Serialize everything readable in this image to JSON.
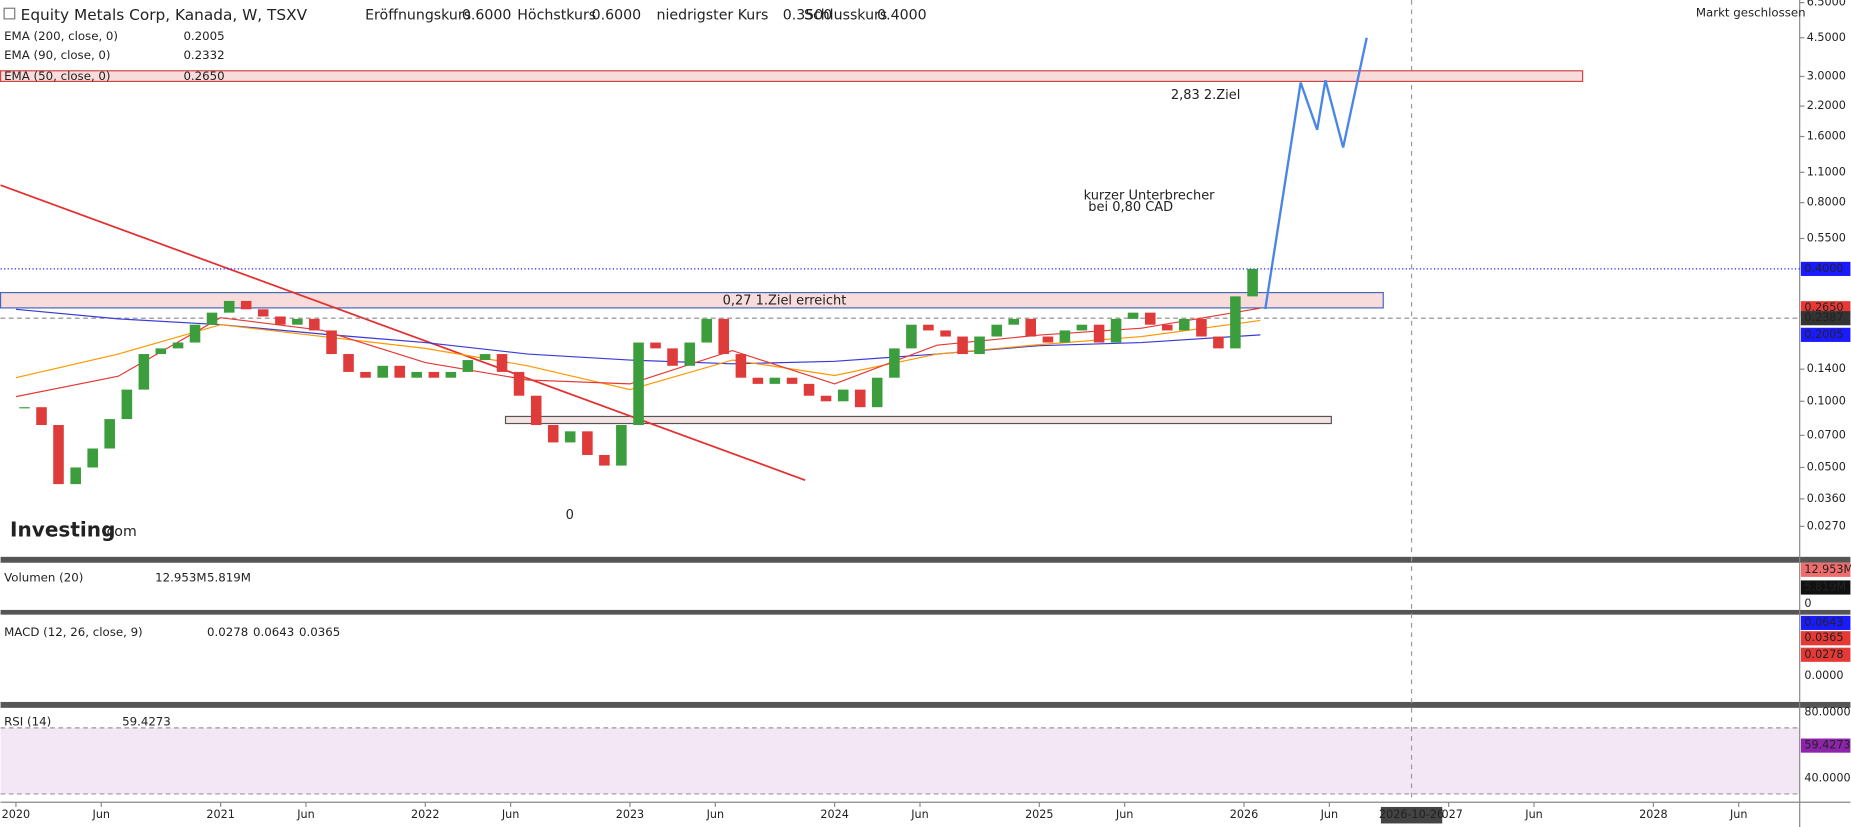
{
  "header": {
    "title": "Equity Metals Corp, Kanada, W, TSXV",
    "ohlc": [
      {
        "label": "Eröffnungskurs",
        "value": "0.6000"
      },
      {
        "label": "Höchstkurs",
        "value": "0.6000"
      },
      {
        "label": "niedrigster Kurs",
        "value": "0.3500"
      },
      {
        "label": "Schlusskurs",
        "value": "0.4000"
      }
    ],
    "market_status": "Markt geschlossen",
    "logo": "Investing",
    "logo_suffix": ".com"
  },
  "indicators": [
    {
      "label": "EMA (200, close, 0)",
      "value": "0.2005",
      "color": "#1a1aff"
    },
    {
      "label": "EMA (90, close, 0)",
      "value": "0.2332",
      "color": "#ff9800"
    },
    {
      "label": "EMA (50, close, 0)",
      "value": "0.2650",
      "color": "#e53935"
    }
  ],
  "chart_data": {
    "type": "candlestick",
    "log_scale": true,
    "xlim": [
      2019.925,
      2028.715
    ],
    "ylim": [
      0.0245,
      6.6
    ],
    "yticks": [
      {
        "value": 0.027,
        "label": "0.0270"
      },
      {
        "value": 0.036,
        "label": "0.0360"
      },
      {
        "value": 0.05,
        "label": "0.0500"
      },
      {
        "value": 0.07,
        "label": "0.0700"
      },
      {
        "value": 0.1,
        "label": "0.1000"
      },
      {
        "value": 0.14,
        "label": "0.1400"
      },
      {
        "value": 0.55,
        "label": "0.5500"
      },
      {
        "value": 0.8,
        "label": "0.8000"
      },
      {
        "value": 1.1,
        "label": "1.1000"
      },
      {
        "value": 1.6,
        "label": "1.6000"
      },
      {
        "value": 2.2,
        "label": "2.2000"
      },
      {
        "value": 3,
        "label": "3.0000"
      },
      {
        "value": 4.5,
        "label": "4.5000"
      },
      {
        "value": 6.5,
        "label": "6.5000"
      }
    ],
    "xticks": [
      {
        "value": 2020,
        "label": "2020"
      },
      {
        "value": 2020.417,
        "label": "Jun"
      },
      {
        "value": 2021,
        "label": "2021"
      },
      {
        "value": 2021.417,
        "label": "Jun"
      },
      {
        "value": 2022,
        "label": "2022"
      },
      {
        "value": 2022.417,
        "label": "Jun"
      },
      {
        "value": 2023,
        "label": "2023"
      },
      {
        "value": 2023.417,
        "label": "Jun"
      },
      {
        "value": 2024,
        "label": "2024"
      },
      {
        "value": 2024.417,
        "label": "Jun"
      },
      {
        "value": 2025,
        "label": "2025"
      },
      {
        "value": 2025.417,
        "label": "Jun"
      },
      {
        "value": 2026,
        "label": "2026"
      },
      {
        "value": 2026.417,
        "label": "Jun"
      },
      {
        "value": 2027,
        "label": "2027"
      },
      {
        "value": 2027.417,
        "label": "Jun"
      },
      {
        "value": 2028,
        "label": "2028"
      },
      {
        "value": 2028.417,
        "label": "Jun"
      }
    ],
    "series": [
      {
        "type": "candlestick",
        "color_up": "#3c9d3c",
        "color_down": "#e03b3b",
        "x": [
          2020.042,
          2020.125,
          2020.208,
          2020.292,
          2020.375,
          2020.458,
          2020.542,
          2020.625,
          2020.708,
          2020.792,
          2020.875,
          2020.958,
          2021.042,
          2021.125,
          2021.208,
          2021.292,
          2021.375,
          2021.458,
          2021.542,
          2021.625,
          2021.708,
          2021.792,
          2021.875,
          2021.958,
          2022.042,
          2022.125,
          2022.208,
          2022.292,
          2022.375,
          2022.458,
          2022.542,
          2022.625,
          2022.708,
          2022.792,
          2022.875,
          2022.958,
          2023.042,
          2023.125,
          2023.208,
          2023.292,
          2023.375,
          2023.458,
          2023.542,
          2023.625,
          2023.708,
          2023.792,
          2023.875,
          2023.958,
          2024.042,
          2024.125,
          2024.208,
          2024.292,
          2024.375,
          2024.458,
          2024.542,
          2024.625,
          2024.708,
          2024.792,
          2024.875,
          2024.958,
          2025.042,
          2025.125,
          2025.208,
          2025.292,
          2025.375,
          2025.458,
          2025.542,
          2025.625,
          2025.708,
          2025.792,
          2025.875,
          2025.958,
          2026.042
        ],
        "values": [
          0.094,
          0.078,
          0.042,
          0.05,
          0.061,
          0.083,
          0.113,
          0.164,
          0.174,
          0.185,
          0.223,
          0.253,
          0.286,
          0.262,
          0.243,
          0.223,
          0.237,
          0.21,
          0.164,
          0.136,
          0.128,
          0.145,
          0.128,
          0.136,
          0.128,
          0.136,
          0.154,
          0.164,
          0.136,
          0.106,
          0.078,
          0.065,
          0.073,
          0.057,
          0.051,
          0.078,
          0.185,
          0.174,
          0.145,
          0.185,
          0.237,
          0.164,
          0.128,
          0.12,
          0.128,
          0.12,
          0.106,
          0.1,
          0.113,
          0.094,
          0.128,
          0.174,
          0.223,
          0.21,
          0.197,
          0.164,
          0.197,
          0.223,
          0.237,
          0.197,
          0.185,
          0.21,
          0.223,
          0.185,
          0.237,
          0.253,
          0.223,
          0.21,
          0.237,
          0.197,
          0.174,
          0.3,
          0.4
        ]
      },
      {
        "type": "line",
        "color": "#3a3ad8",
        "x": [
          2020.0,
          2020.5,
          2021.0,
          2021.5,
          2022.0,
          2022.5,
          2023.0,
          2023.5,
          2024.0,
          2024.5,
          2025.0,
          2025.5,
          2026.08
        ],
        "values": [
          0.262,
          0.237,
          0.223,
          0.202,
          0.185,
          0.164,
          0.154,
          0.148,
          0.152,
          0.164,
          0.179,
          0.185,
          0.2005
        ]
      },
      {
        "type": "line",
        "color": "#ff9800",
        "x": [
          2020.0,
          2020.5,
          2021.0,
          2021.5,
          2022.0,
          2022.5,
          2023.0,
          2023.5,
          2024.0,
          2024.5,
          2025.0,
          2025.5,
          2026.08
        ],
        "values": [
          0.128,
          0.164,
          0.223,
          0.197,
          0.174,
          0.145,
          0.113,
          0.154,
          0.131,
          0.164,
          0.181,
          0.197,
          0.2332
        ]
      },
      {
        "type": "line",
        "color": "#e53935",
        "x": [
          2020.0,
          2020.5,
          2021.0,
          2021.5,
          2022.0,
          2022.5,
          2023.0,
          2023.5,
          2024.0,
          2024.5,
          2025.0,
          2025.5,
          2026.08
        ],
        "values": [
          0.105,
          0.13,
          0.24,
          0.21,
          0.15,
          0.125,
          0.12,
          0.17,
          0.12,
          0.18,
          0.2,
          0.215,
          0.265
        ]
      }
    ],
    "price_labels": [
      {
        "value": 0.4,
        "label": "0.4000",
        "color": "#1a1aff"
      },
      {
        "value": 0.265,
        "label": "0.2650",
        "color": "#e53935"
      },
      {
        "value": 0.2387,
        "label": "0.2387",
        "color": "#333333"
      },
      {
        "value": 0.2005,
        "label": "0.2005",
        "color": "#1a1aff"
      }
    ],
    "annotations": [
      "2,83  2.Ziel",
      "kurzer Unterbrecher",
      "bei 0,80 CAD",
      "0,27 1.Ziel erreicht",
      "0"
    ],
    "crosshair_date": "2026-10-26"
  },
  "panes": {
    "volume": {
      "label": "Volumen (20)",
      "values": [
        "12.953M",
        "5.819M"
      ],
      "axis": [
        "12.953M",
        "5.819M",
        "0"
      ]
    },
    "macd": {
      "label": "MACD (12, 26, close, 9)",
      "values": [
        "0.0278",
        "0.0643",
        "0.0365"
      ],
      "axis": [
        "0.0643",
        "0.0365",
        "0.0278",
        "0.0000"
      ]
    },
    "rsi": {
      "label": "RSI (14)",
      "values": [
        "59.4273"
      ],
      "axis": [
        "80.0000",
        "59.4273",
        "40.0000"
      ]
    }
  }
}
